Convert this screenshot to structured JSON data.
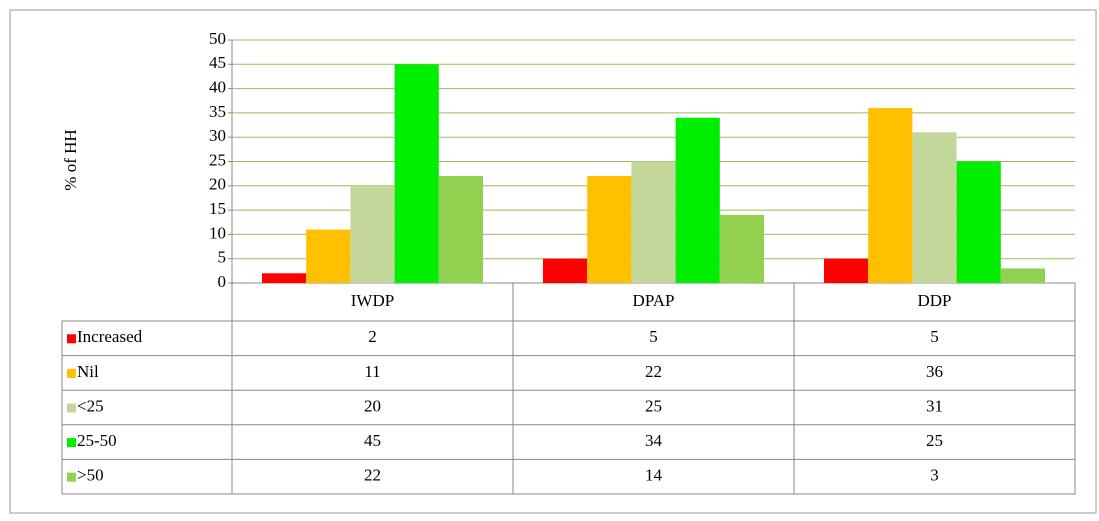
{
  "chart_data": {
    "type": "bar",
    "y_label": "% of HH",
    "categories": [
      "IWDP",
      "DPAP",
      "DDP"
    ],
    "series": [
      {
        "name": "Increased",
        "color": "#ff0000",
        "values": [
          2,
          5,
          5
        ]
      },
      {
        "name": "Nil",
        "color": "#ffc000",
        "values": [
          11,
          22,
          36
        ]
      },
      {
        "name": "<25",
        "color": "#c4d79b",
        "values": [
          20,
          25,
          31
        ]
      },
      {
        "name": "25-50",
        "color": "#00ee00",
        "values": [
          45,
          34,
          25
        ]
      },
      {
        "name": ">50",
        "color": "#92d050",
        "values": [
          22,
          14,
          3
        ]
      }
    ],
    "ylim": [
      0,
      50
    ],
    "yticks": [
      0,
      5,
      10,
      15,
      20,
      25,
      30,
      35,
      40,
      45,
      50
    ],
    "grid": true
  }
}
